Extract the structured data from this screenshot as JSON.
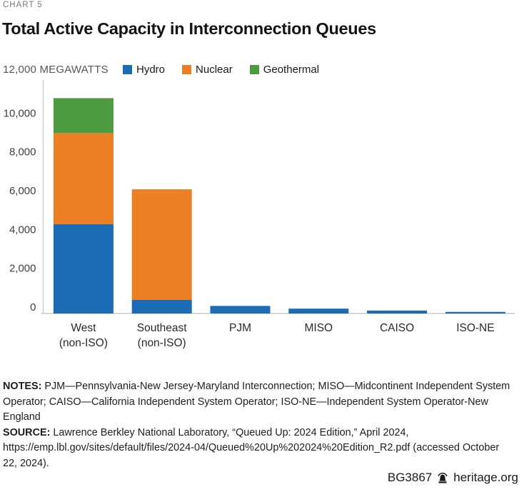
{
  "header": {
    "kicker": "CHART 5",
    "title": "Total Active Capacity in Interconnection Queues"
  },
  "chart_data": {
    "type": "bar",
    "stacked": true,
    "title": "Total Active Capacity in Interconnection Queues",
    "unit": "MEGAWATTS",
    "axis_top_label": "12,000 MEGAWATTS",
    "ylim": [
      0,
      12000
    ],
    "grid": false,
    "legend_position": "top",
    "categories": [
      {
        "lines": [
          "West",
          "(non-ISO)"
        ]
      },
      {
        "lines": [
          "Southeast",
          "(non-ISO)"
        ]
      },
      {
        "lines": [
          "PJM"
        ]
      },
      {
        "lines": [
          "MISO"
        ]
      },
      {
        "lines": [
          "CAISO"
        ]
      },
      {
        "lines": [
          "ISO-NE"
        ]
      }
    ],
    "series": [
      {
        "name": "Hydro",
        "color": "#1c6cb5",
        "values": [
          4600,
          700,
          390,
          250,
          150,
          80
        ]
      },
      {
        "name": "Nuclear",
        "color": "#ec7e24",
        "values": [
          4700,
          5700,
          0,
          0,
          0,
          0
        ]
      },
      {
        "name": "Geothermal",
        "color": "#4d9a41",
        "values": [
          1800,
          0,
          0,
          0,
          0,
          0
        ]
      }
    ],
    "yticks": [
      {
        "value": 0,
        "label": "0"
      },
      {
        "value": 2000,
        "label": "2,000"
      },
      {
        "value": 4000,
        "label": "4,000"
      },
      {
        "value": 6000,
        "label": "6,000"
      },
      {
        "value": 8000,
        "label": "8,000"
      },
      {
        "value": 10000,
        "label": "10,000"
      }
    ]
  },
  "notes": {
    "notes_label": "NOTES:",
    "notes_text": "PJM—Pennsylvania-New Jersey-Maryland Interconnection; MISO—Midcontinent Independent System Operator; CAISO—California Independent System Operator; ISO-NE—Independent System Operator-New England",
    "source_label": "SOURCE:",
    "source_text": "Lawrence Berkley National Laboratory, “Queued Up: 2024 Edition,” April 2024, https://emp.lbl.gov/sites/default/files/2024-04/Queued%20Up%202024%20Edition_R2.pdf (accessed October 22, 2024)."
  },
  "footer": {
    "doc_id": "BG3867",
    "site": "heritage.org",
    "icon": "heritage-bell-icon",
    "icon_color": "#1a1a1a"
  }
}
